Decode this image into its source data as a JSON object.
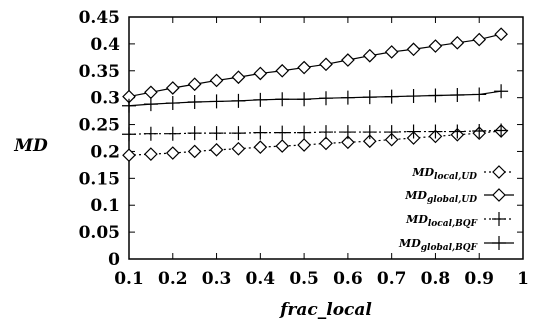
{
  "chart_data": {
    "type": "line",
    "title": "",
    "xlabel": "frac_local",
    "ylabel": "MD",
    "xlim": [
      0.1,
      1.0
    ],
    "ylim": [
      0,
      0.45
    ],
    "x_ticks": [
      "0.1",
      "0.2",
      "0.3",
      "0.4",
      "0.5",
      "0.6",
      "0.7",
      "0.8",
      "0.9",
      "1"
    ],
    "y_ticks": [
      "0",
      "0.05",
      "0.1",
      "0.15",
      "0.2",
      "0.25",
      "0.3",
      "0.35",
      "0.4",
      "0.45"
    ],
    "grid": false,
    "legend_position": "bottom-right",
    "x": [
      0.1,
      0.15,
      0.2,
      0.25,
      0.3,
      0.35,
      0.4,
      0.45,
      0.5,
      0.55,
      0.6,
      0.65,
      0.7,
      0.75,
      0.8,
      0.85,
      0.9,
      0.95
    ],
    "series": [
      {
        "name": "MD_local,UD",
        "legend": {
          "main": "MD",
          "sub": "local,UD"
        },
        "marker": "diamond",
        "line": "dotted",
        "values": [
          0.193,
          0.195,
          0.197,
          0.2,
          0.203,
          0.205,
          0.208,
          0.21,
          0.212,
          0.215,
          0.217,
          0.219,
          0.222,
          0.225,
          0.228,
          0.231,
          0.234,
          0.238
        ]
      },
      {
        "name": "MD_global,UD",
        "legend": {
          "main": "MD",
          "sub": "global,UD"
        },
        "marker": "diamond",
        "line": "solid",
        "values": [
          0.302,
          0.31,
          0.318,
          0.325,
          0.332,
          0.338,
          0.345,
          0.35,
          0.356,
          0.362,
          0.37,
          0.378,
          0.385,
          0.39,
          0.396,
          0.402,
          0.408,
          0.418
        ]
      },
      {
        "name": "MD_local,BQF",
        "legend": {
          "main": "MD",
          "sub": "local,BQF"
        },
        "marker": "plus",
        "line": "dotted",
        "values": [
          0.232,
          0.233,
          0.233,
          0.234,
          0.234,
          0.234,
          0.235,
          0.235,
          0.235,
          0.236,
          0.236,
          0.236,
          0.236,
          0.237,
          0.237,
          0.237,
          0.238,
          0.239
        ]
      },
      {
        "name": "MD_global,BQF",
        "legend": {
          "main": "MD",
          "sub": "global,BQF"
        },
        "marker": "plus",
        "line": "solid",
        "values": [
          0.285,
          0.288,
          0.29,
          0.292,
          0.293,
          0.294,
          0.296,
          0.297,
          0.297,
          0.299,
          0.3,
          0.301,
          0.302,
          0.303,
          0.304,
          0.305,
          0.306,
          0.312
        ]
      }
    ]
  }
}
